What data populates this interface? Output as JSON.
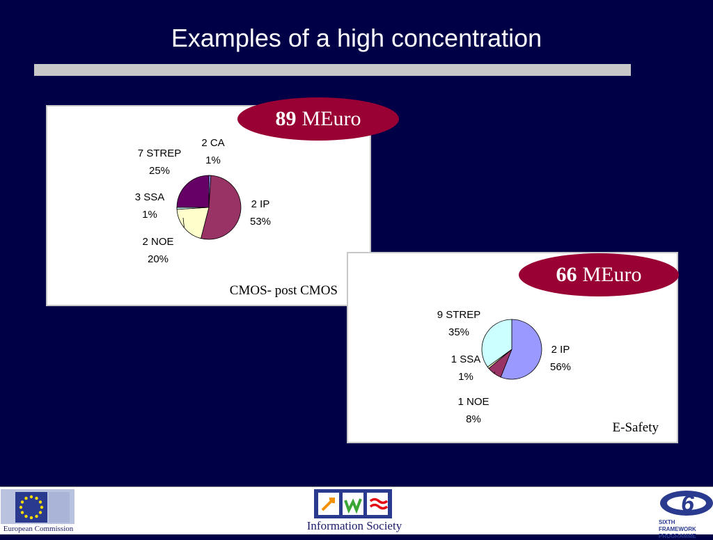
{
  "slide": {
    "title": "Examples of a high concentration"
  },
  "colors": {
    "background": "#000047",
    "badge": "#990033",
    "rule": "#c8c8c8"
  },
  "badges": [
    {
      "amount": "89",
      "unit": "MEuro"
    },
    {
      "amount": "66",
      "unit": "MEuro"
    }
  ],
  "chart_data": [
    {
      "type": "pie",
      "caption": "CMOS- post CMOS",
      "slices": [
        {
          "label": "2 CA",
          "percent_label": "1%",
          "value": 1,
          "color": "#9999ff"
        },
        {
          "label": "2 IP",
          "percent_label": "53%",
          "value": 53,
          "color": "#993366"
        },
        {
          "label": "2 NOE",
          "percent_label": "20%",
          "value": 20,
          "color": "#ffffcc"
        },
        {
          "label": "3 SSA",
          "percent_label": "1%",
          "value": 1,
          "color": "#ccffff"
        },
        {
          "label": "7 STREP",
          "percent_label": "25%",
          "value": 25,
          "color": "#660066"
        }
      ]
    },
    {
      "type": "pie",
      "caption": "E-Safety",
      "slices": [
        {
          "label": "2 IP",
          "percent_label": "56%",
          "value": 56,
          "color": "#9999ff"
        },
        {
          "label": "1 NOE",
          "percent_label": "8%",
          "value": 8,
          "color": "#993366"
        },
        {
          "label": "1 SSA",
          "percent_label": "1%",
          "value": 1,
          "color": "#ffffcc"
        },
        {
          "label": "9 STREP",
          "percent_label": "35%",
          "value": 35,
          "color": "#ccffff"
        }
      ]
    }
  ],
  "footer": {
    "left_logo": "European Commission",
    "center_logo": "Information Society",
    "right_logo_line1": "SIXTH FRAMEWORK",
    "right_logo_line2": "PROGRAMME",
    "right_logo_numeral": "6"
  }
}
